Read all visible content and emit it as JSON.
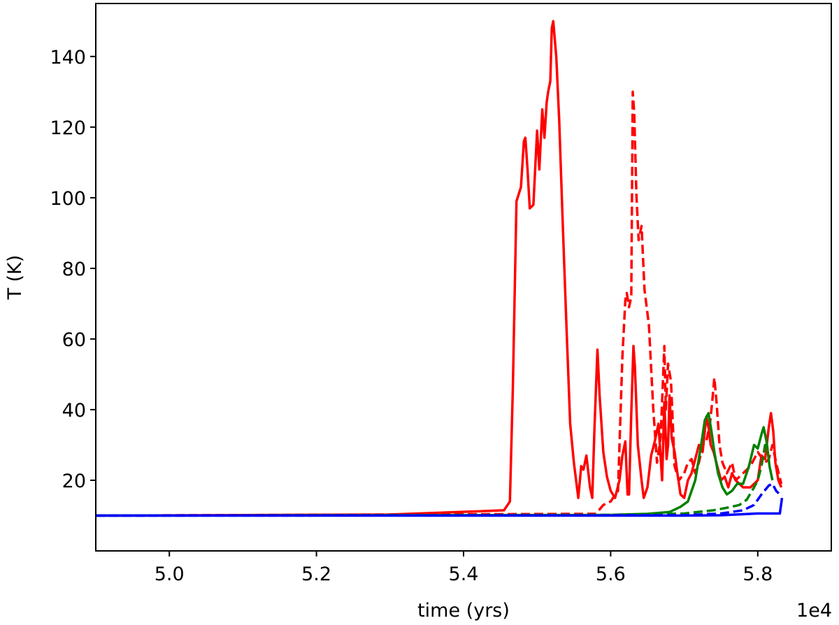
{
  "chart_data": {
    "type": "line",
    "title": "",
    "xlabel": "time (yrs)",
    "ylabel": "T (K)",
    "x_offset_label": "1e4",
    "xlim": [
      4.9,
      5.9
    ],
    "ylim": [
      0,
      155
    ],
    "xticks": [
      5.0,
      5.2,
      5.4,
      5.6,
      5.8
    ],
    "xtick_labels": [
      "5.0",
      "5.2",
      "5.4",
      "5.6",
      "5.8"
    ],
    "yticks": [
      20,
      40,
      60,
      80,
      100,
      120,
      140
    ],
    "ytick_labels": [
      "20",
      "40",
      "60",
      "80",
      "100",
      "120",
      "140"
    ],
    "grid": false,
    "series": [
      {
        "color": "#ff0000",
        "style": "solid",
        "points": [
          [
            4.9,
            10
          ],
          [
            5.3,
            10.3
          ],
          [
            5.42,
            11.2
          ],
          [
            5.455,
            11.5
          ],
          [
            5.463,
            14
          ],
          [
            5.467,
            46
          ],
          [
            5.472,
            99
          ],
          [
            5.478,
            103
          ],
          [
            5.482,
            116
          ],
          [
            5.484,
            117
          ],
          [
            5.487,
            108
          ],
          [
            5.49,
            97
          ],
          [
            5.495,
            98
          ],
          [
            5.5,
            119
          ],
          [
            5.503,
            108
          ],
          [
            5.507,
            125
          ],
          [
            5.51,
            117
          ],
          [
            5.513,
            127
          ],
          [
            5.515,
            130
          ],
          [
            5.518,
            133
          ],
          [
            5.52,
            148
          ],
          [
            5.522,
            150
          ],
          [
            5.526,
            140
          ],
          [
            5.53,
            122
          ],
          [
            5.535,
            92
          ],
          [
            5.54,
            63
          ],
          [
            5.545,
            36
          ],
          [
            5.55,
            25
          ],
          [
            5.556,
            15
          ],
          [
            5.56,
            24
          ],
          [
            5.563,
            23
          ],
          [
            5.567,
            27
          ],
          [
            5.572,
            18
          ],
          [
            5.575,
            15
          ],
          [
            5.578,
            35
          ],
          [
            5.582,
            57
          ],
          [
            5.585,
            44
          ],
          [
            5.59,
            28
          ],
          [
            5.595,
            21
          ],
          [
            5.6,
            17
          ],
          [
            5.606,
            15
          ],
          [
            5.612,
            20
          ],
          [
            5.616,
            27
          ],
          [
            5.62,
            31
          ],
          [
            5.623,
            16
          ],
          [
            5.625,
            16
          ],
          [
            5.628,
            39
          ],
          [
            5.631,
            58
          ],
          [
            5.633,
            52
          ],
          [
            5.637,
            30
          ],
          [
            5.642,
            20
          ],
          [
            5.645,
            15
          ],
          [
            5.65,
            18
          ],
          [
            5.655,
            27
          ],
          [
            5.66,
            31
          ],
          [
            5.665,
            36
          ],
          [
            5.67,
            20
          ],
          [
            5.673,
            42
          ],
          [
            5.676,
            26
          ],
          [
            5.678,
            30
          ],
          [
            5.68,
            44
          ],
          [
            5.683,
            32
          ],
          [
            5.687,
            28
          ],
          [
            5.69,
            23
          ],
          [
            5.695,
            16
          ],
          [
            5.7,
            15
          ],
          [
            5.705,
            20
          ],
          [
            5.71,
            22
          ],
          [
            5.715,
            26
          ],
          [
            5.72,
            30
          ],
          [
            5.725,
            28
          ],
          [
            5.73,
            38
          ],
          [
            5.733,
            35
          ],
          [
            5.736,
            30
          ],
          [
            5.74,
            28
          ],
          [
            5.745,
            24
          ],
          [
            5.75,
            20
          ],
          [
            5.755,
            21
          ],
          [
            5.76,
            18
          ],
          [
            5.765,
            22
          ],
          [
            5.77,
            20
          ],
          [
            5.78,
            18
          ],
          [
            5.79,
            18
          ],
          [
            5.8,
            20
          ],
          [
            5.805,
            27
          ],
          [
            5.81,
            26
          ],
          [
            5.815,
            35
          ],
          [
            5.818,
            39
          ],
          [
            5.821,
            34
          ],
          [
            5.824,
            25
          ],
          [
            5.828,
            20
          ],
          [
            5.832,
            18
          ]
        ]
      },
      {
        "color": "#ff0000",
        "style": "dashed",
        "points": [
          [
            4.9,
            10
          ],
          [
            5.58,
            10.5
          ],
          [
            5.59,
            13
          ],
          [
            5.6,
            14
          ],
          [
            5.61,
            17
          ],
          [
            5.616,
            55
          ],
          [
            5.62,
            71
          ],
          [
            5.622,
            73
          ],
          [
            5.625,
            69
          ],
          [
            5.628,
            72
          ],
          [
            5.63,
            130
          ],
          [
            5.632,
            124
          ],
          [
            5.635,
            101
          ],
          [
            5.638,
            88
          ],
          [
            5.642,
            92
          ],
          [
            5.646,
            74
          ],
          [
            5.652,
            64
          ],
          [
            5.658,
            40
          ],
          [
            5.663,
            25
          ],
          [
            5.668,
            32
          ],
          [
            5.673,
            58
          ],
          [
            5.675,
            40
          ],
          [
            5.678,
            53
          ],
          [
            5.682,
            48
          ],
          [
            5.687,
            24
          ],
          [
            5.693,
            20
          ],
          [
            5.7,
            22
          ],
          [
            5.705,
            25
          ],
          [
            5.71,
            26
          ],
          [
            5.715,
            22
          ],
          [
            5.72,
            25
          ],
          [
            5.725,
            30
          ],
          [
            5.73,
            31
          ],
          [
            5.735,
            36
          ],
          [
            5.738,
            42
          ],
          [
            5.741,
            49
          ],
          [
            5.744,
            42
          ],
          [
            5.748,
            30
          ],
          [
            5.752,
            25
          ],
          [
            5.758,
            22
          ],
          [
            5.765,
            25
          ],
          [
            5.77,
            20
          ],
          [
            5.78,
            22
          ],
          [
            5.79,
            24
          ],
          [
            5.8,
            28
          ],
          [
            5.81,
            25
          ],
          [
            5.815,
            26
          ],
          [
            5.82,
            30
          ],
          [
            5.826,
            24
          ],
          [
            5.832,
            19
          ]
        ]
      },
      {
        "color": "#008000",
        "style": "solid",
        "points": [
          [
            4.9,
            10
          ],
          [
            5.6,
            10.2
          ],
          [
            5.65,
            10.5
          ],
          [
            5.68,
            11
          ],
          [
            5.695,
            12.5
          ],
          [
            5.705,
            14
          ],
          [
            5.715,
            20
          ],
          [
            5.723,
            30
          ],
          [
            5.728,
            37
          ],
          [
            5.733,
            39
          ],
          [
            5.737,
            34
          ],
          [
            5.741,
            28
          ],
          [
            5.746,
            22
          ],
          [
            5.752,
            18
          ],
          [
            5.758,
            16
          ],
          [
            5.765,
            17
          ],
          [
            5.772,
            19
          ],
          [
            5.78,
            19
          ],
          [
            5.788,
            24
          ],
          [
            5.795,
            30
          ],
          [
            5.8,
            29
          ],
          [
            5.805,
            33
          ],
          [
            5.808,
            35
          ],
          [
            5.812,
            31
          ],
          [
            5.816,
            24
          ],
          [
            5.82,
            20
          ]
        ]
      },
      {
        "color": "#008000",
        "style": "dashed",
        "points": [
          [
            4.9,
            10
          ],
          [
            5.6,
            10.2
          ],
          [
            5.7,
            10.6
          ],
          [
            5.74,
            11.5
          ],
          [
            5.76,
            12.3
          ],
          [
            5.775,
            13
          ],
          [
            5.785,
            14.5
          ],
          [
            5.795,
            18
          ],
          [
            5.8,
            20
          ],
          [
            5.805,
            24
          ],
          [
            5.81,
            30
          ],
          [
            5.814,
            29
          ]
        ]
      },
      {
        "color": "#0000ff",
        "style": "solid",
        "points": [
          [
            4.9,
            10
          ],
          [
            5.7,
            10
          ],
          [
            5.75,
            10.1
          ],
          [
            5.78,
            10.4
          ],
          [
            5.8,
            10.6
          ],
          [
            5.83,
            10.6
          ],
          [
            5.833,
            15
          ]
        ]
      },
      {
        "color": "#0000ff",
        "style": "dashed",
        "points": [
          [
            4.9,
            10
          ],
          [
            5.7,
            10.1
          ],
          [
            5.75,
            10.6
          ],
          [
            5.78,
            11.5
          ],
          [
            5.795,
            13
          ],
          [
            5.805,
            16
          ],
          [
            5.815,
            18.5
          ],
          [
            5.82,
            19
          ],
          [
            5.825,
            17
          ],
          [
            5.83,
            16
          ],
          [
            5.833,
            15.5
          ]
        ]
      }
    ]
  }
}
